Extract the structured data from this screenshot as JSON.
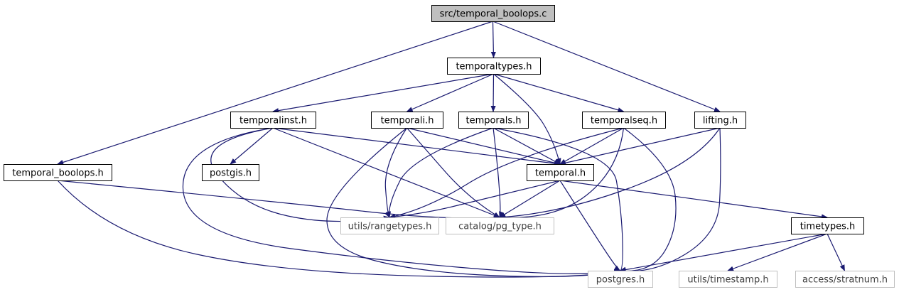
{
  "graph": {
    "colors": {
      "edge": "#191970",
      "node_border": "#000000",
      "node_border_external": "#bfbfbf",
      "root_fill": "#bfbfbf",
      "node_fill": "#ffffff",
      "text": "#000000",
      "text_external": "#404040"
    },
    "nodes": {
      "root": {
        "label": "src/temporal_boolops.c",
        "kind": "root"
      },
      "temporaltypes": {
        "label": "temporaltypes.h",
        "kind": "internal"
      },
      "temporalinst": {
        "label": "temporalinst.h",
        "kind": "internal"
      },
      "temporali": {
        "label": "temporali.h",
        "kind": "internal"
      },
      "temporals": {
        "label": "temporals.h",
        "kind": "internal"
      },
      "temporalseq": {
        "label": "temporalseq.h",
        "kind": "internal"
      },
      "lifting": {
        "label": "lifting.h",
        "kind": "internal"
      },
      "temporal_boolops_h": {
        "label": "temporal_boolops.h",
        "kind": "internal"
      },
      "postgis": {
        "label": "postgis.h",
        "kind": "internal"
      },
      "temporal": {
        "label": "temporal.h",
        "kind": "internal"
      },
      "rangetypes": {
        "label": "utils/rangetypes.h",
        "kind": "external"
      },
      "pg_type": {
        "label": "catalog/pg_type.h",
        "kind": "external"
      },
      "timetypes": {
        "label": "timetypes.h",
        "kind": "internal"
      },
      "postgres": {
        "label": "postgres.h",
        "kind": "external"
      },
      "timestamp": {
        "label": "utils/timestamp.h",
        "kind": "external"
      },
      "stratnum": {
        "label": "access/stratnum.h",
        "kind": "external"
      }
    },
    "edges": [
      [
        "root",
        "temporaltypes"
      ],
      [
        "root",
        "temporal_boolops_h"
      ],
      [
        "root",
        "lifting"
      ],
      [
        "temporaltypes",
        "temporalinst"
      ],
      [
        "temporaltypes",
        "temporali"
      ],
      [
        "temporaltypes",
        "temporals"
      ],
      [
        "temporaltypes",
        "temporalseq"
      ],
      [
        "temporaltypes",
        "temporal"
      ],
      [
        "temporalinst",
        "postgis"
      ],
      [
        "temporalinst",
        "temporal"
      ],
      [
        "temporalinst",
        "rangetypes"
      ],
      [
        "temporalinst",
        "pg_type"
      ],
      [
        "temporalinst",
        "postgres"
      ],
      [
        "temporali",
        "temporal"
      ],
      [
        "temporali",
        "rangetypes"
      ],
      [
        "temporali",
        "pg_type"
      ],
      [
        "temporali",
        "postgres"
      ],
      [
        "temporals",
        "temporal"
      ],
      [
        "temporals",
        "rangetypes"
      ],
      [
        "temporals",
        "pg_type"
      ],
      [
        "temporals",
        "postgres"
      ],
      [
        "temporalseq",
        "temporal"
      ],
      [
        "temporalseq",
        "rangetypes"
      ],
      [
        "temporalseq",
        "pg_type"
      ],
      [
        "temporalseq",
        "postgres"
      ],
      [
        "lifting",
        "temporal"
      ],
      [
        "lifting",
        "pg_type"
      ],
      [
        "lifting",
        "postgres"
      ],
      [
        "temporal_boolops_h",
        "pg_type"
      ],
      [
        "temporal_boolops_h",
        "postgres"
      ],
      [
        "temporal",
        "rangetypes"
      ],
      [
        "temporal",
        "pg_type"
      ],
      [
        "temporal",
        "timetypes"
      ],
      [
        "temporal",
        "postgres"
      ],
      [
        "timetypes",
        "postgres"
      ],
      [
        "timetypes",
        "timestamp"
      ],
      [
        "timetypes",
        "stratnum"
      ]
    ]
  }
}
